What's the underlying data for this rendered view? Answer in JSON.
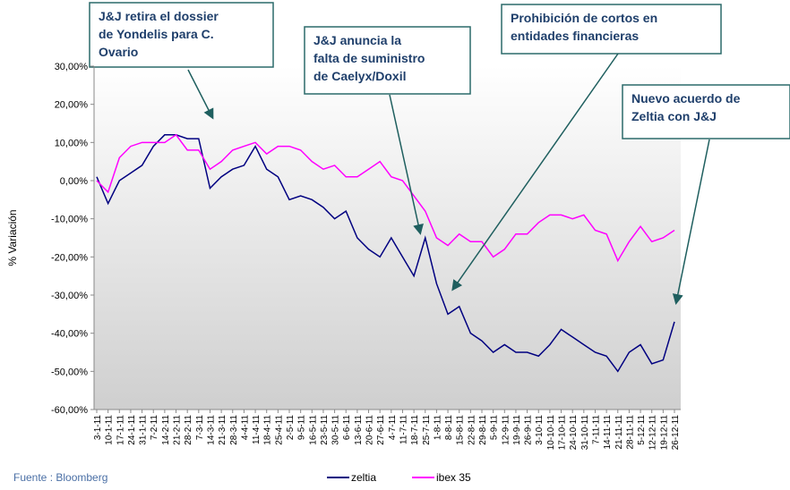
{
  "chart_data": {
    "type": "line",
    "y_axis_label": "% Variación",
    "source": "Fuente : Bloomberg",
    "categories": [
      "3-1-11",
      "10-1-11",
      "17-1-11",
      "24-1-11",
      "31-1-11",
      "7-2-11",
      "14-2-11",
      "21-2-11",
      "28-2-11",
      "7-3-11",
      "14-3-11",
      "21-3-11",
      "28-3-11",
      "4-4-11",
      "11-4-11",
      "18-4-11",
      "25-4-11",
      "2-5-11",
      "9-5-11",
      "16-5-11",
      "23-5-11",
      "30-5-11",
      "6-6-11",
      "13-6-11",
      "20-6-11",
      "27-6-11",
      "4-7-11",
      "11-7-11",
      "18-7-11",
      "25-7-11",
      "1-8-11",
      "8-8-11",
      "15-8-11",
      "22-8-11",
      "29-8-11",
      "5-9-11",
      "12-9-11",
      "19-9-11",
      "26-9-11",
      "3-10-11",
      "10-10-11",
      "17-10-11",
      "24-10-11",
      "31-10-11",
      "7-11-11",
      "14-11-11",
      "21-11-11",
      "28-11-11",
      "5-12-11",
      "12-12-11",
      "19-12-11",
      "26-12-11"
    ],
    "series": [
      {
        "name": "zeltia",
        "color": "#000080",
        "values": [
          1,
          -6,
          0,
          2,
          4,
          9,
          12,
          12,
          11,
          11,
          -2,
          1,
          3,
          4,
          9,
          3,
          1,
          -5,
          -4,
          -5,
          -7,
          -10,
          -8,
          -15,
          -18,
          -20,
          -15,
          -20,
          -25,
          -15,
          -27,
          -35,
          -33,
          -40,
          -42,
          -45,
          -43,
          -45,
          -45,
          -46,
          -43,
          -39,
          -41,
          -43,
          -45,
          -46,
          -50,
          -45,
          -43,
          -48,
          -47,
          -37
        ]
      },
      {
        "name": "ibex 35",
        "color": "#ff00ff",
        "values": [
          0,
          -3,
          6,
          9,
          10,
          10,
          10,
          12,
          8,
          8,
          3,
          5,
          8,
          9,
          10,
          7,
          9,
          9,
          8,
          5,
          3,
          4,
          1,
          1,
          3,
          5,
          1,
          0,
          -4,
          -8,
          -15,
          -17,
          -14,
          -16,
          -16,
          -20,
          -18,
          -14,
          -14,
          -11,
          -9,
          -9,
          -10,
          -9,
          -13,
          -14,
          -21,
          -16,
          -12,
          -16,
          -15,
          -13
        ]
      }
    ],
    "ylim": [
      -60,
      30
    ],
    "yticks": [
      {
        "value": -60,
        "label": "-60,00%"
      },
      {
        "value": -50,
        "label": "-50,00%"
      },
      {
        "value": -40,
        "label": "-40,00%"
      },
      {
        "value": -30,
        "label": "-30,00%"
      },
      {
        "value": -20,
        "label": "-20,00%"
      },
      {
        "value": -10,
        "label": "-10,00%"
      },
      {
        "value": 0,
        "label": "0,00%"
      },
      {
        "value": 10,
        "label": "10,00%"
      },
      {
        "value": 20,
        "label": "20,00%"
      },
      {
        "value": 30,
        "label": "30,00%"
      }
    ],
    "annotations": [
      {
        "lines": [
          "J&J retira el dossier",
          "de Yondelis para C.",
          "Ovario"
        ]
      },
      {
        "lines": [
          "J&J anuncia la",
          "falta de suministro",
          "de Caelyx/Doxil"
        ]
      },
      {
        "lines": [
          "Prohibición de cortos en",
          "entidades financieras"
        ]
      },
      {
        "lines": [
          "Nuevo acuerdo de",
          "Zeltia con J&J"
        ]
      }
    ]
  }
}
